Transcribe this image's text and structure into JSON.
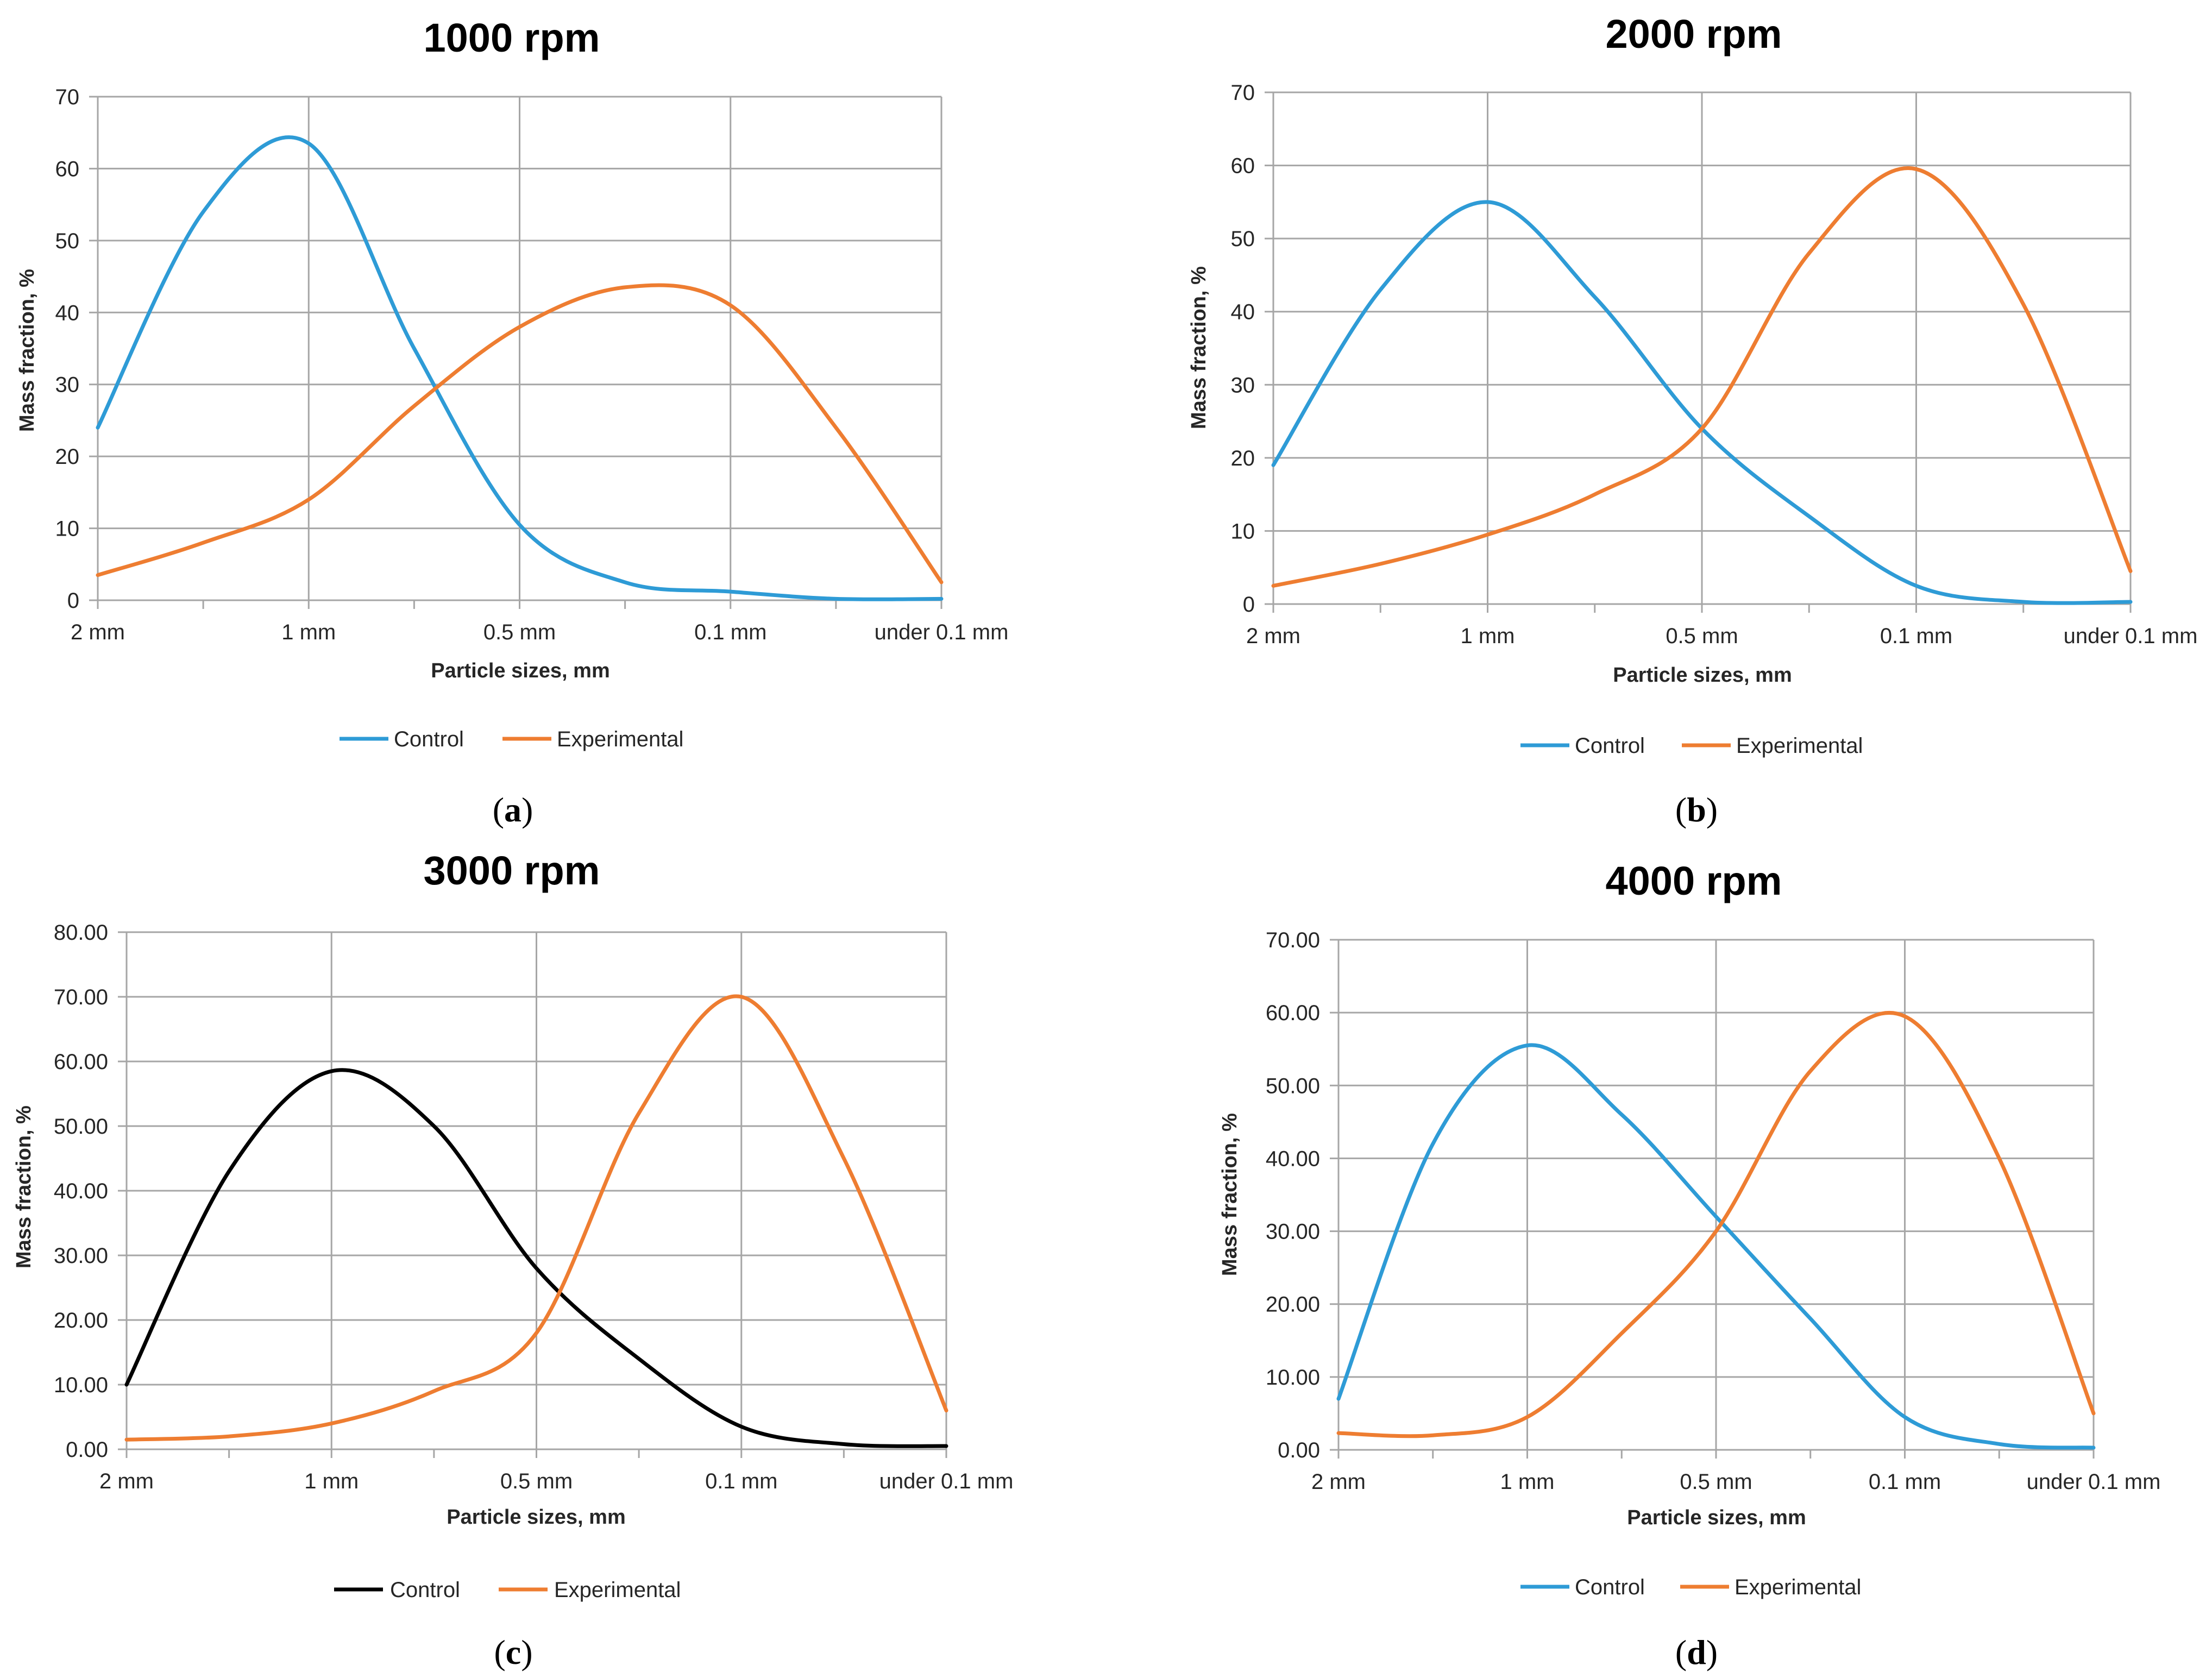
{
  "chart_data": [
    {
      "type": "line",
      "panel_label": "a",
      "title": "1000 rpm",
      "xlabel": "Particle sizes, mm",
      "ylabel": "Mass fraction, %",
      "categories": [
        "2 mm",
        "1 mm",
        "0.5 mm",
        "0.1 mm",
        "under 0.1 mm"
      ],
      "x": [
        0,
        0.5,
        1,
        1.5,
        2,
        2.5,
        3,
        3.5,
        4
      ],
      "ylim": [
        0,
        70
      ],
      "yticks": [
        "0",
        "10",
        "20",
        "30",
        "40",
        "50",
        "60",
        "70"
      ],
      "series": [
        {
          "name": "Control",
          "color": "#2e9bd6",
          "values": [
            24,
            54,
            63.5,
            35,
            10.5,
            2.5,
            1.2,
            0.2,
            0.2
          ]
        },
        {
          "name": "Experimental",
          "color": "#ee7d31",
          "values": [
            3.5,
            8,
            14,
            27,
            38,
            43.5,
            41,
            24,
            2.5
          ]
        }
      ],
      "legend": "bottom"
    },
    {
      "type": "line",
      "panel_label": "b",
      "title": "2000 rpm",
      "xlabel": "Particle sizes, mm",
      "ylabel": "Mass fraction, %",
      "categories": [
        "2 mm",
        "1 mm",
        "0.5 mm",
        "0.1 mm",
        "under 0.1 mm"
      ],
      "x": [
        0,
        0.5,
        1,
        1.5,
        2,
        2.5,
        3,
        3.5,
        4
      ],
      "ylim": [
        0,
        70
      ],
      "yticks": [
        "0",
        "10",
        "20",
        "30",
        "40",
        "50",
        "60",
        "70"
      ],
      "series": [
        {
          "name": "Control",
          "color": "#2e9bd6",
          "values": [
            19,
            43,
            55,
            42,
            24,
            12,
            2.5,
            0.3,
            0.3
          ]
        },
        {
          "name": "Experimental",
          "color": "#ee7d31",
          "values": [
            2.5,
            5.5,
            9.5,
            15,
            24,
            48,
            59.5,
            41,
            4.5
          ]
        }
      ],
      "legend": "bottom"
    },
    {
      "type": "line",
      "panel_label": "c",
      "title": "3000 rpm",
      "xlabel": "Particle sizes, mm",
      "ylabel": "Mass fraction, %",
      "categories": [
        "2 mm",
        "1 mm",
        "0.5 mm",
        "0.1 mm",
        "under 0.1 mm"
      ],
      "x": [
        0,
        0.5,
        1,
        1.5,
        2,
        2.5,
        3,
        3.5,
        4
      ],
      "ylim": [
        0,
        80
      ],
      "yticks": [
        "0.00",
        "10.00",
        "20.00",
        "30.00",
        "40.00",
        "50.00",
        "60.00",
        "70.00",
        "80.00"
      ],
      "series": [
        {
          "name": "Control",
          "color": "#000000",
          "values": [
            10,
            43,
            58.5,
            50,
            28,
            14,
            3.5,
            0.8,
            0.5
          ]
        },
        {
          "name": "Experimental",
          "color": "#ee7d31",
          "values": [
            1.5,
            2,
            4,
            9,
            18,
            52,
            70,
            45,
            6
          ]
        }
      ],
      "legend": "bottom"
    },
    {
      "type": "line",
      "panel_label": "d",
      "title": "4000 rpm",
      "xlabel": "Particle sizes, mm",
      "ylabel": "Mass fraction, %",
      "categories": [
        "2 mm",
        "1 mm",
        "0.5 mm",
        "0.1 mm",
        "under 0.1 mm"
      ],
      "x": [
        0,
        0.5,
        1,
        1.5,
        2,
        2.5,
        3,
        3.5,
        4
      ],
      "ylim": [
        0,
        70
      ],
      "yticks": [
        "0.00",
        "10.00",
        "20.00",
        "30.00",
        "40.00",
        "50.00",
        "60.00",
        "70.00"
      ],
      "series": [
        {
          "name": "Control",
          "color": "#2e9bd6",
          "values": [
            7,
            42,
            55.5,
            46,
            32,
            18,
            4.5,
            0.8,
            0.3
          ]
        },
        {
          "name": "Experimental",
          "color": "#ee7d31",
          "values": [
            2.3,
            2,
            4.5,
            16,
            30,
            52,
            59.5,
            40,
            5
          ]
        }
      ],
      "legend": "bottom"
    }
  ]
}
